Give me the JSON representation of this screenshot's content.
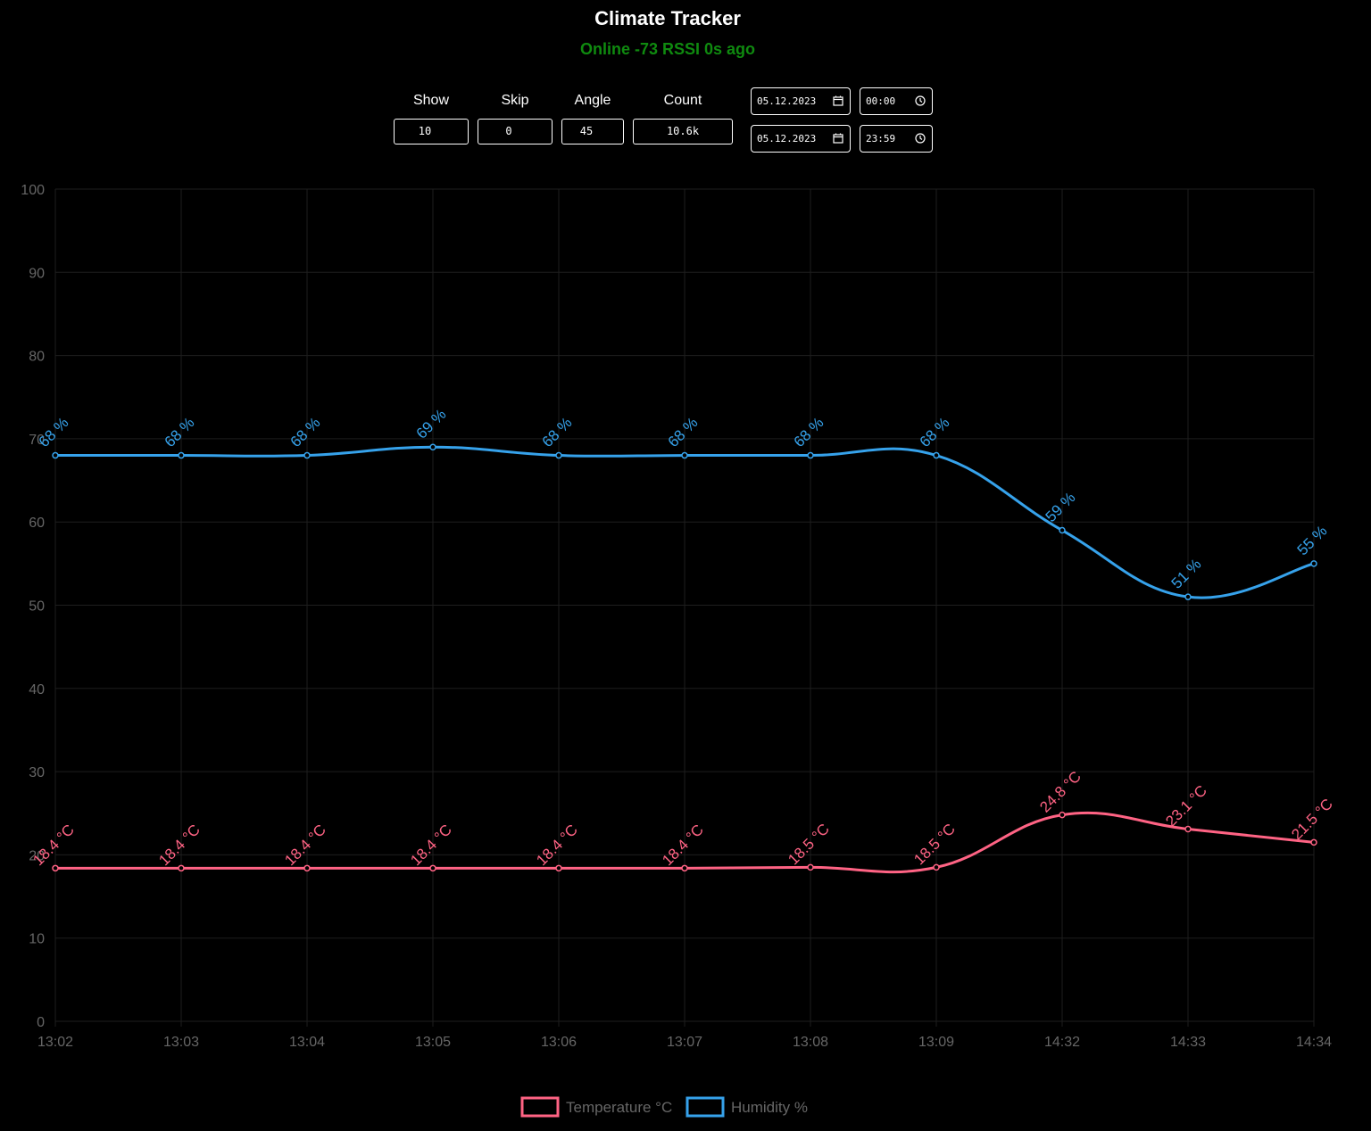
{
  "header": {
    "title": "Climate Tracker",
    "status": "Online -73 RSSI 0s ago"
  },
  "controls": {
    "show_label": "Show",
    "show_value": "10",
    "skip_label": "Skip",
    "skip_value": "0",
    "angle_label": "Angle",
    "angle_value": "45",
    "count_label": "Count",
    "count_value": "10.6k",
    "start_date": "05.12.2023",
    "start_time": "00:00",
    "end_date": "05.12.2023",
    "end_time": "23:59"
  },
  "icons": {
    "date": "calendar-icon",
    "time": "clock-icon"
  },
  "chart_data": {
    "type": "line",
    "categories": [
      "13:02",
      "13:03",
      "13:04",
      "13:05",
      "13:06",
      "13:07",
      "13:08",
      "13:09",
      "14:32",
      "14:33",
      "14:34"
    ],
    "ylim": [
      0,
      100
    ],
    "yticks": [
      0,
      10,
      20,
      30,
      40,
      50,
      60,
      70,
      80,
      90,
      100
    ],
    "grid": true,
    "legend_position": "bottom",
    "label_angle": 45,
    "series": [
      {
        "name": "Temperature °C",
        "unit": " °C",
        "color": "#ff6384",
        "values": [
          18.4,
          18.4,
          18.4,
          18.4,
          18.4,
          18.4,
          18.5,
          18.5,
          24.8,
          23.1,
          21.5
        ],
        "labels": [
          "18.4 °C",
          "18.4 °C",
          "18.4 °C",
          "18.4 °C",
          "18.4 °C",
          "18.4 °C",
          "18.5 °C",
          "18.5 °C",
          "24.8 °C",
          "23.1 °C",
          "21.5 °C"
        ]
      },
      {
        "name": "Humidity %",
        "unit": " %",
        "color": "#36a2eb",
        "values": [
          68,
          68,
          68,
          69,
          68,
          68,
          68,
          68,
          59,
          51,
          55
        ],
        "labels": [
          "68 %",
          "68 %",
          "68 %",
          "69 %",
          "68 %",
          "68 %",
          "68 %",
          "68 %",
          "59 %",
          "51 %",
          "55 %"
        ]
      }
    ]
  }
}
